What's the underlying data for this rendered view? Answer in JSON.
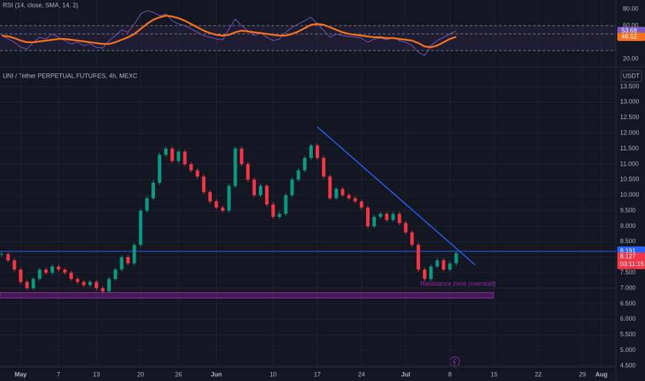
{
  "chart_data": {
    "type": "candlestick",
    "title": "UNI / Tether PERPETUAL FUTURES, 4h, MEXC",
    "currency": "USDT",
    "categories": [
      null,
      null,
      null,
      "May",
      null,
      null,
      null,
      null,
      null,
      "7",
      null,
      null,
      null,
      null,
      null,
      "13",
      null,
      null,
      null,
      null,
      null,
      null,
      "20",
      null,
      null,
      null,
      null,
      null,
      "26",
      null,
      null,
      null,
      null,
      null,
      "Jun",
      null,
      null,
      null,
      null,
      null,
      null,
      null,
      null,
      "10",
      null,
      null,
      null,
      null,
      null,
      null,
      "17",
      null,
      null,
      null,
      null,
      null,
      null,
      "24",
      null,
      null,
      null,
      null,
      null,
      null,
      "Jul",
      null,
      null,
      null,
      null,
      null,
      null,
      "8",
      null,
      null,
      null,
      null,
      null,
      null,
      "15",
      null,
      null,
      null,
      null,
      null,
      null,
      "22",
      null,
      null,
      null,
      null,
      null,
      null,
      "29",
      null,
      null,
      "Aug",
      null,
      null
    ],
    "values": [
      8.1,
      7.9,
      7.6,
      7.2,
      7.0,
      7.3,
      7.6,
      7.5,
      7.7,
      7.6,
      7.5,
      7.3,
      7.2,
      7.1,
      7.2,
      7.0,
      6.9,
      7.3,
      7.6,
      8.0,
      7.8,
      8.4,
      9.5,
      9.9,
      10.4,
      11.3,
      11.5,
      11.1,
      11.4,
      11.0,
      10.8,
      10.6,
      10.1,
      9.8,
      9.6,
      9.5,
      10.3,
      11.5,
      11.0,
      10.5,
      10.0,
      10.3,
      9.7,
      9.3,
      9.4,
      10.0,
      10.5,
      10.8,
      11.2,
      11.6,
      11.2,
      10.6,
      9.9,
      10.2,
      10.0,
      9.9,
      9.8,
      9.6,
      9.0,
      9.3,
      9.4,
      9.2,
      9.4,
      9.1,
      8.8,
      8.4,
      7.6,
      7.3,
      7.7,
      7.9,
      7.6,
      7.8,
      8.127,
      null,
      null,
      null,
      null,
      null,
      null,
      null,
      null,
      null,
      null,
      null,
      null,
      null,
      null,
      null,
      null,
      null,
      null,
      null,
      null,
      null,
      null,
      null,
      null,
      null
    ],
    "up_color": "#089981",
    "down_color": "#f23645",
    "ylim": [
      4.455,
      14.058
    ],
    "yticks": [
      {
        "value": 4.5,
        "label": "4.500"
      },
      {
        "value": 5,
        "label": "5.000"
      },
      {
        "value": 5.5,
        "label": "5.500"
      },
      {
        "value": 6,
        "label": "6.000"
      },
      {
        "value": 6.5,
        "label": "6.500"
      },
      {
        "value": 7,
        "label": "7.000"
      },
      {
        "value": 7.5,
        "label": "7.500"
      },
      {
        "value": 8,
        "label": "8.000"
      },
      {
        "value": 8.5,
        "label": "8.500"
      },
      {
        "value": 9,
        "label": "9.000"
      },
      {
        "value": 9.5,
        "label": "9.500"
      },
      {
        "value": 10,
        "label": "10.000"
      },
      {
        "value": 10.5,
        "label": "10.500"
      },
      {
        "value": 11,
        "label": "11.000"
      },
      {
        "value": 11.5,
        "label": "11.500"
      },
      {
        "value": 12,
        "label": "12.000"
      },
      {
        "value": 12.5,
        "label": "12.500"
      },
      {
        "value": 13,
        "label": "13.000"
      },
      {
        "value": 13.5,
        "label": "13.500"
      }
    ],
    "grid": true,
    "level": {
      "value": 8.191,
      "label": "8.191",
      "color": "#2962ff"
    },
    "last_price": {
      "value": 8.127,
      "label": "8.127",
      "countdown": "03:11:15",
      "color": "#f23645"
    },
    "trendline": {
      "start": 12.2,
      "end": 7.75,
      "color": "#2962ff"
    },
    "zone": {
      "range": [
        6.68,
        6.86
      ],
      "label": "Resistance zone (oversold)",
      "color": "#9c27b0"
    },
    "rsi": {
      "legend": "RSI (14, close, SMA, 14, 2)",
      "values": [
        48,
        44,
        40,
        34,
        32,
        40,
        46,
        44,
        50,
        46,
        42,
        38,
        40,
        36,
        38,
        34,
        33,
        42,
        48,
        55,
        52,
        62,
        74,
        78,
        76,
        72,
        74,
        66,
        62,
        60,
        56,
        52,
        48,
        46,
        44,
        43,
        56,
        68,
        60,
        54,
        48,
        52,
        46,
        42,
        44,
        52,
        58,
        62,
        66,
        70,
        62,
        54,
        46,
        50,
        48,
        47,
        46,
        45,
        40,
        44,
        45,
        43,
        46,
        42,
        40,
        36,
        28,
        24,
        36,
        42,
        46,
        50,
        53.68
      ],
      "value_label": "53.68",
      "color": "#7e57c2",
      "sma_values": [
        48,
        47,
        45,
        42,
        40,
        40,
        41,
        42,
        43,
        44,
        44,
        43,
        42,
        41,
        40,
        39,
        38,
        38,
        40,
        43,
        46,
        50,
        56,
        62,
        67,
        70,
        72,
        71,
        69,
        66,
        62,
        58,
        54,
        51,
        49,
        48,
        49,
        52,
        54,
        53,
        52,
        51,
        50,
        49,
        48,
        48,
        50,
        53,
        57,
        61,
        62,
        61,
        58,
        55,
        52,
        50,
        49,
        48,
        47,
        46,
        46,
        45,
        45,
        44,
        43,
        42,
        39,
        35,
        34,
        36,
        40,
        44,
        46.52
      ],
      "sma_label": "46.52",
      "sma_color": "#f7721b",
      "ylim": [
        10.83,
        90.83
      ],
      "yticks": [
        {
          "value": 80,
          "label": "80.00"
        },
        {
          "value": 60,
          "label": "60.00"
        },
        {
          "value": 20,
          "label": "20.00"
        }
      ],
      "bands": [
        60,
        50,
        30
      ]
    }
  }
}
